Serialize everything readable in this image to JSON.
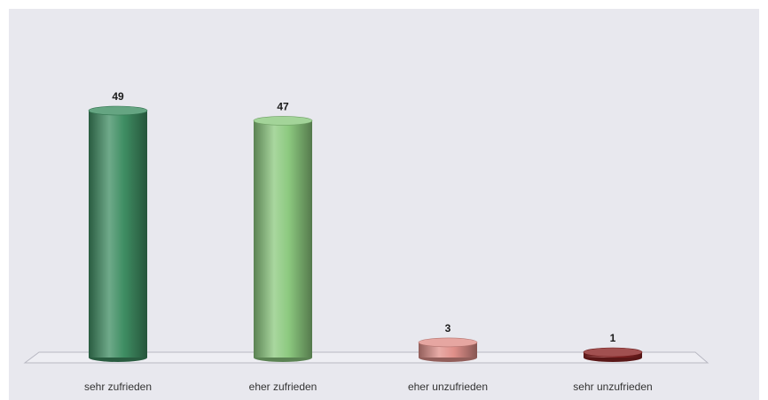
{
  "chart_data": {
    "type": "bar",
    "style": "3d-cylinder",
    "categories": [
      "sehr zufrieden",
      "eher zufrieden",
      "eher unzufrieden",
      "sehr unzufrieden"
    ],
    "values": [
      49,
      47,
      3,
      1
    ],
    "value_labels": [
      "49",
      "47",
      "3",
      "1"
    ],
    "colors": [
      "#3f8e63",
      "#8cc97f",
      "#e0908a",
      "#8a2424"
    ],
    "title": "",
    "xlabel": "",
    "ylabel": "",
    "ylim": [
      0,
      49
    ],
    "grid": false,
    "legend": "none",
    "background": "#e8e8ee"
  }
}
